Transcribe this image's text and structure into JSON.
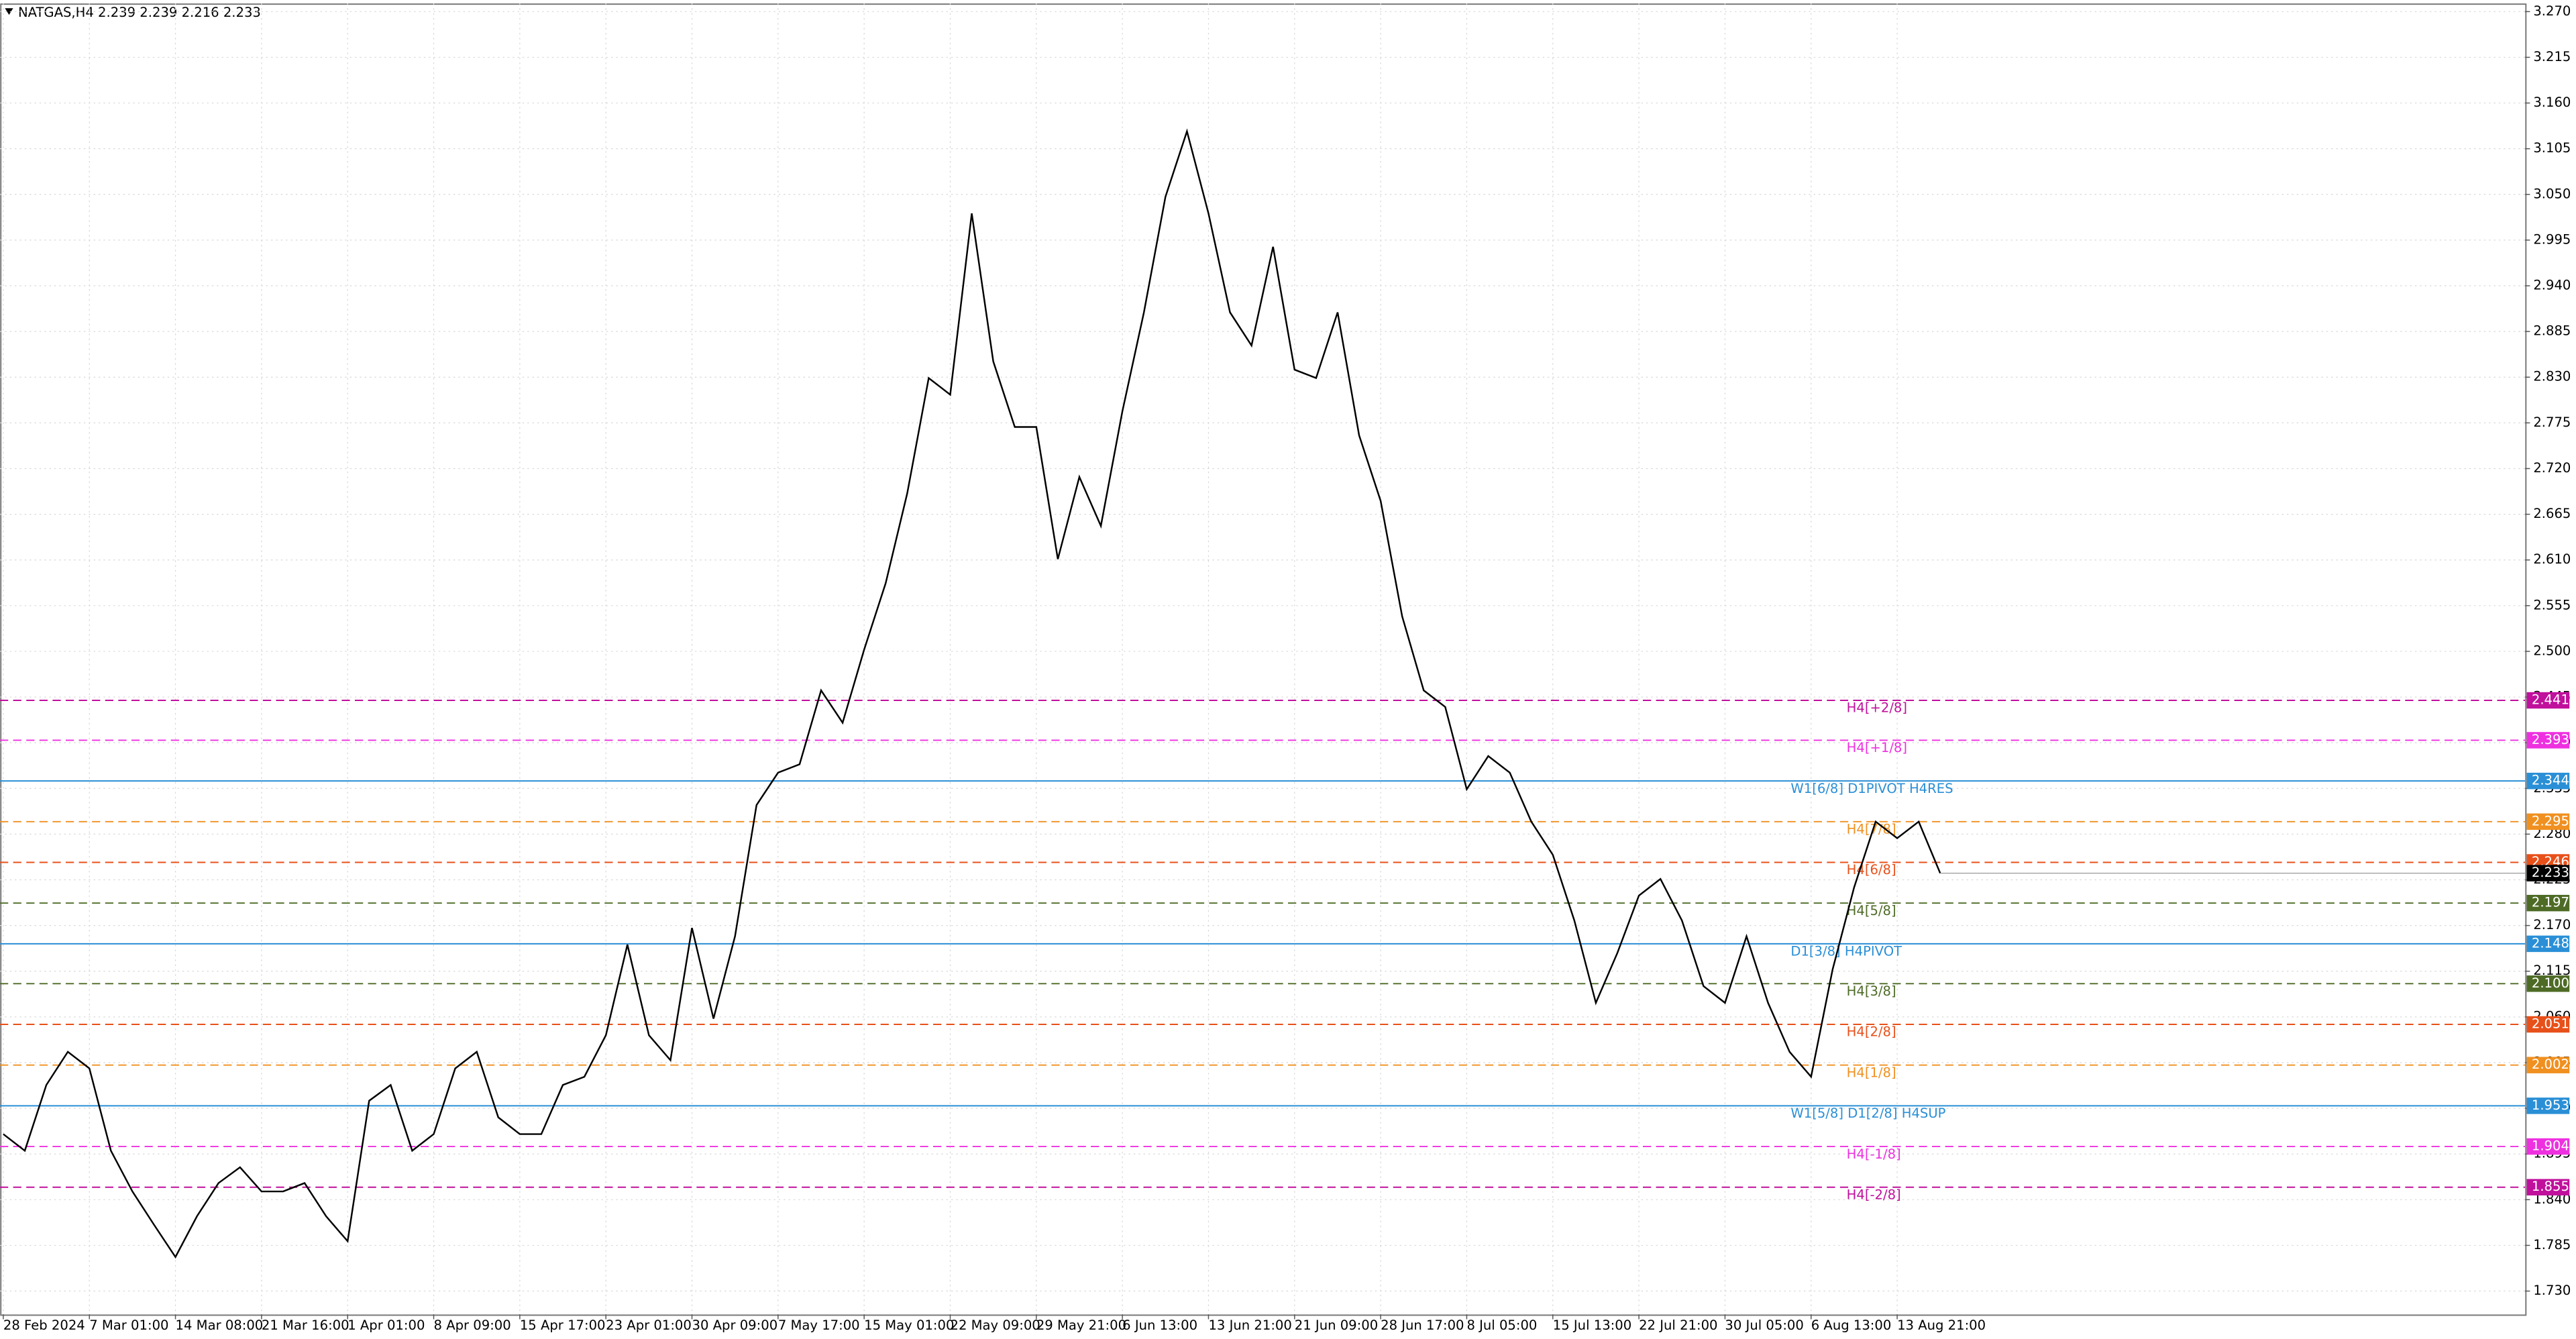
{
  "chart_data": {
    "type": "line",
    "header": "NATGAS,H4  2.239 2.239 2.216 2.233",
    "color": "#000000",
    "grid": true,
    "categories": [
      "28 Feb 2024",
      null,
      null,
      null,
      "7 Mar 01:00",
      null,
      null,
      null,
      "14 Mar 08:00",
      null,
      null,
      null,
      "21 Mar 16:00",
      null,
      null,
      null,
      "1 Apr 01:00",
      null,
      null,
      null,
      "8 Apr 09:00",
      null,
      null,
      null,
      "15 Apr 17:00",
      null,
      null,
      null,
      "23 Apr 01:00",
      null,
      null,
      null,
      "30 Apr 09:00",
      null,
      null,
      null,
      "7 May 17:00",
      null,
      null,
      null,
      "15 May 01:00",
      null,
      null,
      null,
      "22 May 09:00",
      null,
      null,
      null,
      "29 May 21:00",
      null,
      null,
      null,
      "6 Jun 13:00",
      null,
      null,
      null,
      "13 Jun 21:00",
      null,
      null,
      null,
      "21 Jun 09:00",
      null,
      null,
      null,
      "28 Jun 17:00",
      null,
      null,
      null,
      "8 Jul 05:00",
      null,
      null,
      null,
      "15 Jul 13:00",
      null,
      null,
      null,
      "22 Jul 21:00",
      null,
      null,
      null,
      "30 Jul 05:00",
      null,
      null,
      null,
      "6 Aug 13:00",
      null,
      null,
      null,
      "13 Aug 21:00",
      null,
      null
    ],
    "values": [
      1.919,
      1.899,
      1.978,
      2.018,
      1.998,
      1.899,
      1.85,
      1.81,
      1.771,
      1.82,
      1.86,
      1.879,
      1.85,
      1.85,
      1.86,
      1.82,
      1.79,
      1.959,
      1.978,
      1.899,
      1.919,
      1.998,
      2.018,
      1.939,
      1.919,
      1.919,
      1.978,
      1.988,
      2.038,
      2.147,
      2.038,
      2.008,
      2.167,
      2.058,
      2.157,
      2.315,
      2.354,
      2.364,
      2.453,
      2.414,
      2.502,
      2.582,
      2.69,
      2.829,
      2.809,
      3.027,
      2.849,
      2.77,
      2.77,
      2.611,
      2.71,
      2.651,
      2.789,
      2.908,
      3.047,
      3.126,
      3.027,
      2.908,
      2.868,
      2.987,
      2.839,
      2.829,
      2.908,
      2.76,
      2.681,
      2.542,
      2.453,
      2.433,
      2.334,
      2.374,
      2.354,
      2.295,
      2.255,
      2.176,
      2.077,
      2.137,
      2.206,
      2.226,
      2.176,
      2.097,
      2.077,
      2.157,
      2.077,
      2.018,
      1.988,
      2.117,
      2.216,
      2.295,
      2.275,
      2.295,
      2.233
    ],
    "ylim": [
      1.702,
      3.28
    ],
    "yticks": [
      {
        "value": 1.73,
        "label": "1.730"
      },
      {
        "value": 1.785,
        "label": "1.785"
      },
      {
        "value": 1.84,
        "label": "1.840"
      },
      {
        "value": 1.895,
        "label": "1.895"
      },
      {
        "value": 1.95,
        "label": "1.950"
      },
      {
        "value": 2.005,
        "label": "2.005"
      },
      {
        "value": 2.06,
        "label": "2.060"
      },
      {
        "value": 2.115,
        "label": "2.115"
      },
      {
        "value": 2.17,
        "label": "2.170"
      },
      {
        "value": 2.225,
        "label": "2.225"
      },
      {
        "value": 2.28,
        "label": "2.280"
      },
      {
        "value": 2.335,
        "label": "2.335"
      },
      {
        "value": 2.39,
        "label": "2.390"
      },
      {
        "value": 2.445,
        "label": "2.445"
      },
      {
        "value": 2.5,
        "label": "2.500"
      },
      {
        "value": 2.555,
        "label": "2.555"
      },
      {
        "value": 2.61,
        "label": "2.610"
      },
      {
        "value": 2.665,
        "label": "2.665"
      },
      {
        "value": 2.72,
        "label": "2.720"
      },
      {
        "value": 2.775,
        "label": "2.775"
      },
      {
        "value": 2.83,
        "label": "2.830"
      },
      {
        "value": 2.885,
        "label": "2.885"
      },
      {
        "value": 2.94,
        "label": "2.940"
      },
      {
        "value": 2.995,
        "label": "2.995"
      },
      {
        "value": 3.05,
        "label": "3.050"
      },
      {
        "value": 3.105,
        "label": "3.105"
      },
      {
        "value": 3.16,
        "label": "3.160"
      },
      {
        "value": 3.215,
        "label": "3.215"
      },
      {
        "value": 3.27,
        "label": "3.270"
      }
    ],
    "levels": [
      {
        "name": "H4[+2/8]",
        "value": 2.441,
        "label": "2.441",
        "color": "#c0109c",
        "dash": true
      },
      {
        "name": "H4[+1/8]",
        "value": 2.393,
        "label": "2.393",
        "color": "#ee30e0",
        "dash": true
      },
      {
        "name": "W1[6/8] D1PIVOT H4RES",
        "value": 2.344,
        "label": "2.344",
        "color": "#2a8fd6",
        "dash": false
      },
      {
        "name": "H4[7/8]",
        "value": 2.295,
        "label": "2.295",
        "color": "#f09020",
        "dash": true
      },
      {
        "name": "H4[6/8]",
        "value": 2.246,
        "label": "2.246",
        "color": "#e8501a",
        "dash": true
      },
      {
        "name": "H4[5/8]",
        "value": 2.197,
        "label": "2.197",
        "color": "#4e6b26",
        "dash": true
      },
      {
        "name": "D1[3/8] H4PIVOT",
        "value": 2.148,
        "label": "2.148",
        "color": "#2a8fd6",
        "dash": false
      },
      {
        "name": "H4[3/8]",
        "value": 2.1,
        "label": "2.100",
        "color": "#4e6b26",
        "dash": true
      },
      {
        "name": "H4[2/8]",
        "value": 2.051,
        "label": "2.051",
        "color": "#e8501a",
        "dash": true
      },
      {
        "name": "H4[1/8]",
        "value": 2.002,
        "label": "2.002",
        "color": "#f09020",
        "dash": true
      },
      {
        "name": "W1[5/8] D1[2/8] H4SUP",
        "value": 1.953,
        "label": "1.953",
        "color": "#2a8fd6",
        "dash": false
      },
      {
        "name": "H4[-1/8]",
        "value": 1.904,
        "label": "1.904",
        "color": "#ee30e0",
        "dash": true
      },
      {
        "name": "H4[-2/8]",
        "value": 1.855,
        "label": "1.855",
        "color": "#c0109c",
        "dash": true
      }
    ],
    "last_price": {
      "value": 2.233,
      "label": "2.233",
      "color": "#000000"
    }
  }
}
